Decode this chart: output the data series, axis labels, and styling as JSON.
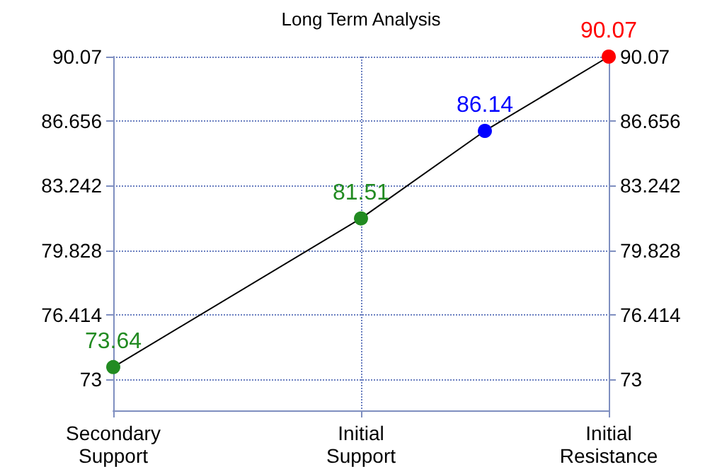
{
  "chart_data": {
    "type": "line",
    "title": "Long Term Analysis",
    "categories": [
      "Secondary\nSupport",
      null,
      "Initial\nSupport",
      null,
      "Initial\nResistance"
    ],
    "series": [
      {
        "values": [
          73.64,
          null,
          81.51,
          86.14,
          90.07
        ],
        "color": "#000000",
        "colors": [
          "#228b22",
          null,
          "#228b22",
          "#0000ff",
          "#ff0000"
        ]
      }
    ],
    "ylim": [
      71.35,
      90.07
    ],
    "yticks": [
      73,
      76.414,
      79.828,
      83.242,
      86.656,
      90.07
    ],
    "y2lim": [
      71.35,
      90.07
    ],
    "y2ticks": [
      73,
      76.414,
      79.828,
      83.242,
      86.656,
      90.07
    ],
    "grid": true,
    "marker": "circle",
    "data_labels": true
  }
}
